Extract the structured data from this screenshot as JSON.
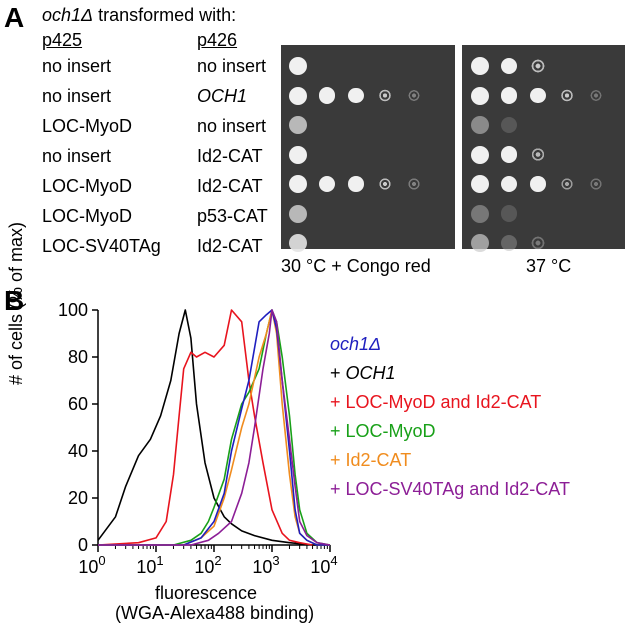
{
  "panelA": {
    "label": "A",
    "title_strain": "och1Δ",
    "title_rest": " transformed with:",
    "col1_header": "p425",
    "col2_header": "p426",
    "rows": [
      {
        "c1": "no insert",
        "c2": "no insert",
        "c2_italic": false
      },
      {
        "c1": "no insert",
        "c2": "OCH1",
        "c2_italic": true
      },
      {
        "c1": "LOC-MyoD",
        "c2": "no insert",
        "c2_italic": false
      },
      {
        "c1": "no insert",
        "c2": "Id2-CAT",
        "c2_italic": false
      },
      {
        "c1": "LOC-MyoD",
        "c2": "Id2-CAT",
        "c2_italic": false
      },
      {
        "c1": "LOC-MyoD",
        "c2": "p53-CAT",
        "c2_italic": false
      },
      {
        "c1": "LOC-SV40TAg",
        "c2": "Id2-CAT",
        "c2_italic": false
      }
    ],
    "plate1_caption": "30 °C + Congo red",
    "plate2_caption": "37 °C",
    "growth_congo": [
      [
        1,
        0,
        0,
        0,
        0
      ],
      [
        1,
        1,
        1,
        0.8,
        0.4
      ],
      [
        0.8,
        0,
        0,
        0,
        0
      ],
      [
        1,
        0,
        0,
        0,
        0
      ],
      [
        1,
        1,
        1,
        0.8,
        0.4
      ],
      [
        0.8,
        0,
        0,
        0,
        0
      ],
      [
        0.9,
        0,
        0,
        0,
        0
      ]
    ],
    "growth_37": [
      [
        1,
        1,
        0.8,
        0,
        0
      ],
      [
        1,
        1,
        1,
        0.8,
        0.3
      ],
      [
        0.6,
        0.2,
        0,
        0,
        0
      ],
      [
        1,
        1,
        0.7,
        0,
        0
      ],
      [
        1,
        1,
        1,
        0.6,
        0.2
      ],
      [
        0.5,
        0.2,
        0,
        0,
        0
      ],
      [
        0.7,
        0.4,
        0.2,
        0,
        0
      ]
    ]
  },
  "panelB": {
    "label": "B",
    "legend": [
      {
        "text": "och1Δ",
        "color": "#1f1fbf",
        "italic": true
      },
      {
        "text": "+ OCH1",
        "color": "#000000",
        "italic_part": "OCH1"
      },
      {
        "text": "+ LOC-MyoD and Id2-CAT",
        "color": "#e8141e"
      },
      {
        "text": "+ LOC-MyoD",
        "color": "#18a018"
      },
      {
        "text": "+ Id2-CAT",
        "color": "#f08c1e"
      },
      {
        "text": "+ LOC-SV40TAg and Id2-CAT",
        "color": "#8c1e96"
      }
    ],
    "legend_prefix": "+ ",
    "legend_och1_plain": "OCH1",
    "chart_data": {
      "type": "line",
      "xlabel_line1": "fluorescence",
      "xlabel_line2": "(WGA-Alexa488 binding)",
      "ylabel": "# of cells (% of max)",
      "xscale": "log",
      "xlim": [
        1,
        10000
      ],
      "ylim": [
        0,
        100
      ],
      "yticks": [
        0,
        20,
        40,
        60,
        80,
        100
      ],
      "xtick_base": "10",
      "xtick_exps": [
        "0",
        "1",
        "2",
        "3",
        "4"
      ],
      "series": [
        {
          "color": "#000000",
          "x": [
            1,
            2,
            3,
            5,
            8,
            12,
            18,
            25,
            32,
            40,
            50,
            70,
            100,
            150,
            200,
            300,
            500,
            1000,
            2000,
            5000,
            10000
          ],
          "y": [
            2,
            12,
            25,
            38,
            45,
            55,
            70,
            90,
            100,
            88,
            60,
            35,
            20,
            12,
            9,
            6,
            4,
            2,
            1,
            0,
            0
          ]
        },
        {
          "color": "#e8141e",
          "x": [
            1,
            5,
            10,
            15,
            20,
            25,
            30,
            40,
            50,
            70,
            100,
            150,
            200,
            300,
            400,
            500,
            700,
            1000,
            1500,
            2000,
            3000,
            5000
          ],
          "y": [
            0,
            1,
            3,
            10,
            30,
            55,
            75,
            82,
            80,
            82,
            80,
            85,
            100,
            95,
            70,
            55,
            35,
            15,
            5,
            2,
            1,
            0
          ]
        },
        {
          "color": "#18a018",
          "x": [
            1,
            20,
            40,
            60,
            80,
            100,
            150,
            200,
            300,
            400,
            600,
            800,
            1000,
            1200,
            1500,
            2000,
            2500,
            3000,
            4000,
            6000,
            10000
          ],
          "y": [
            0,
            0,
            2,
            5,
            10,
            16,
            28,
            45,
            60,
            65,
            75,
            90,
            100,
            95,
            80,
            55,
            30,
            15,
            5,
            1,
            0
          ]
        },
        {
          "color": "#f08c1e",
          "x": [
            1,
            30,
            60,
            100,
            150,
            200,
            300,
            400,
            600,
            800,
            1000,
            1200,
            1500,
            2000,
            2500,
            3000,
            4000,
            6000,
            10000
          ],
          "y": [
            0,
            0,
            3,
            8,
            20,
            32,
            50,
            60,
            80,
            90,
            100,
            90,
            60,
            30,
            12,
            5,
            2,
            0,
            0
          ]
        },
        {
          "color": "#1f1fbf",
          "x": [
            1,
            30,
            60,
            100,
            150,
            200,
            300,
            400,
            600,
            800,
            1000,
            1200,
            1500,
            2000,
            2500,
            3000,
            4000,
            6000,
            10000
          ],
          "y": [
            0,
            0,
            3,
            10,
            22,
            40,
            58,
            70,
            95,
            98,
            100,
            92,
            70,
            40,
            15,
            5,
            2,
            0,
            0
          ]
        },
        {
          "color": "#8c1e96",
          "x": [
            1,
            40,
            80,
            120,
            200,
            300,
            400,
            500,
            700,
            900,
            1000,
            1200,
            1500,
            2000,
            2500,
            3000,
            4000,
            6000,
            10000
          ],
          "y": [
            0,
            0,
            2,
            5,
            10,
            22,
            35,
            50,
            75,
            90,
            100,
            95,
            70,
            45,
            25,
            10,
            4,
            1,
            0
          ]
        }
      ]
    }
  }
}
